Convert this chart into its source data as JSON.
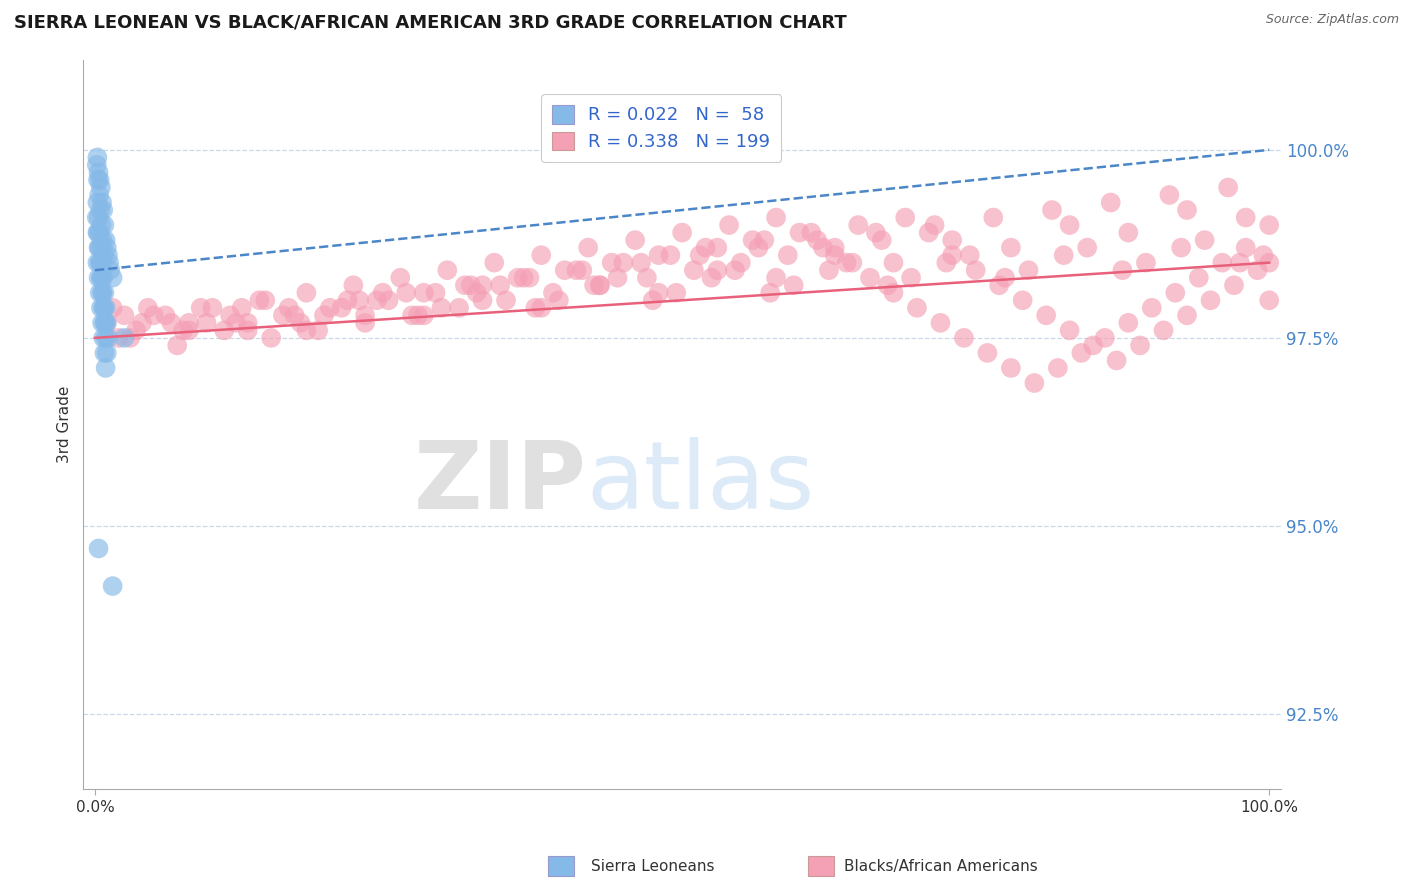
{
  "title": "SIERRA LEONEAN VS BLACK/AFRICAN AMERICAN 3RD GRADE CORRELATION CHART",
  "source": "Source: ZipAtlas.com",
  "ylabel": "3rd Grade",
  "xlim": [
    -1.0,
    101.0
  ],
  "ylim": [
    91.5,
    101.2
  ],
  "yticks": [
    92.5,
    95.0,
    97.5,
    100.0
  ],
  "ytick_labels": [
    "92.5%",
    "95.0%",
    "97.5%",
    "100.0%"
  ],
  "xtick_labels": [
    "0.0%",
    "100.0%"
  ],
  "blue_color": "#85b9e8",
  "pink_color": "#f4a0b5",
  "blue_line_color": "#4a86c8",
  "pink_line_color": "#e8607a",
  "legend_blue_label": "Sierra Leoneans",
  "legend_pink_label": "Blacks/African Americans",
  "background_color": "#ffffff",
  "grid_color": "#c8d8e8",
  "watermark_zip": "ZIP",
  "watermark_atlas": "atlas",
  "blue_scatter_x": [
    0.2,
    0.3,
    0.4,
    0.5,
    0.6,
    0.7,
    0.8,
    0.9,
    1.0,
    1.1,
    1.2,
    1.3,
    0.15,
    0.25,
    0.35,
    0.45,
    0.55,
    0.65,
    0.75,
    0.2,
    0.3,
    0.4,
    0.5,
    0.6,
    0.7,
    0.8,
    0.9,
    1.0,
    1.1,
    0.2,
    0.3,
    0.4,
    0.5,
    0.6,
    0.7,
    0.8,
    0.9,
    1.0,
    0.2,
    0.3,
    0.4,
    0.5,
    0.6,
    0.7,
    0.8,
    0.9,
    0.15,
    0.25,
    0.35,
    0.45,
    0.55,
    0.65,
    0.75,
    0.85,
    1.5,
    2.5,
    0.3,
    1.5
  ],
  "blue_scatter_y": [
    99.9,
    99.7,
    99.6,
    99.5,
    99.3,
    99.2,
    99.0,
    98.8,
    98.7,
    98.6,
    98.5,
    98.4,
    99.8,
    99.6,
    99.4,
    99.2,
    99.0,
    98.8,
    98.6,
    99.3,
    99.1,
    98.9,
    98.7,
    98.5,
    98.3,
    98.1,
    97.9,
    97.7,
    97.5,
    98.9,
    98.7,
    98.5,
    98.3,
    98.1,
    97.9,
    97.7,
    97.5,
    97.3,
    98.5,
    98.3,
    98.1,
    97.9,
    97.7,
    97.5,
    97.3,
    97.1,
    99.1,
    98.9,
    98.7,
    98.5,
    98.3,
    98.1,
    97.9,
    97.7,
    98.3,
    97.5,
    94.7,
    94.2
  ],
  "pink_scatter_x": [
    1.0,
    2.0,
    3.5,
    5.0,
    7.0,
    9.0,
    11.0,
    13.0,
    15.0,
    17.0,
    19.0,
    21.0,
    23.0,
    25.0,
    27.0,
    29.0,
    31.0,
    33.0,
    35.0,
    37.0,
    39.0,
    41.0,
    43.0,
    45.0,
    47.0,
    49.0,
    51.0,
    53.0,
    55.0,
    57.0,
    59.0,
    61.0,
    63.0,
    65.0,
    67.0,
    69.0,
    71.0,
    73.0,
    75.0,
    77.0,
    79.0,
    81.0,
    83.0,
    85.0,
    87.0,
    89.0,
    91.0,
    93.0,
    95.0,
    97.0,
    99.0,
    1.5,
    4.0,
    6.0,
    8.0,
    10.0,
    12.0,
    14.0,
    16.0,
    18.0,
    20.0,
    22.0,
    24.0,
    26.0,
    28.0,
    30.0,
    32.0,
    34.0,
    36.0,
    38.0,
    40.0,
    42.0,
    44.0,
    46.0,
    48.0,
    50.0,
    52.0,
    54.0,
    56.0,
    58.0,
    60.0,
    62.0,
    64.0,
    66.0,
    68.0,
    70.0,
    72.0,
    74.0,
    76.0,
    78.0,
    80.0,
    82.0,
    84.0,
    86.0,
    88.0,
    90.0,
    92.0,
    94.0,
    96.0,
    98.0,
    2.5,
    7.5,
    12.5,
    17.5,
    22.5,
    27.5,
    32.5,
    37.5,
    42.5,
    47.5,
    52.5,
    57.5,
    62.5,
    67.5,
    72.5,
    77.5,
    82.5,
    87.5,
    92.5,
    97.5,
    4.5,
    9.5,
    14.5,
    19.5,
    24.5,
    29.5,
    34.5,
    39.5,
    44.5,
    49.5,
    54.5,
    59.5,
    64.5,
    69.5,
    74.5,
    79.5,
    84.5,
    89.5,
    94.5,
    99.5,
    3.0,
    8.0,
    18.0,
    28.0,
    38.0,
    48.0,
    58.0,
    68.0,
    78.0,
    88.0,
    98.0,
    13.0,
    23.0,
    33.0,
    43.0,
    53.0,
    63.0,
    73.0,
    83.0,
    93.0,
    6.5,
    16.5,
    26.5,
    36.5,
    46.5,
    56.5,
    66.5,
    76.5,
    86.5,
    96.5,
    11.5,
    21.5,
    31.5,
    41.5,
    51.5,
    61.5,
    71.5,
    81.5,
    91.5,
    100.0,
    100.0,
    100.0
  ],
  "pink_scatter_y": [
    97.7,
    97.5,
    97.6,
    97.8,
    97.4,
    97.9,
    97.6,
    97.7,
    97.5,
    97.8,
    97.6,
    97.9,
    97.7,
    98.0,
    97.8,
    98.1,
    97.9,
    98.2,
    98.0,
    98.3,
    98.1,
    98.4,
    98.2,
    98.5,
    98.3,
    98.6,
    98.4,
    98.7,
    98.5,
    98.8,
    98.6,
    98.9,
    98.7,
    99.0,
    98.8,
    99.1,
    98.9,
    98.6,
    98.4,
    98.2,
    98.0,
    97.8,
    97.6,
    97.4,
    97.2,
    97.4,
    97.6,
    97.8,
    98.0,
    98.2,
    98.4,
    97.9,
    97.7,
    97.8,
    97.6,
    97.9,
    97.7,
    98.0,
    97.8,
    98.1,
    97.9,
    98.2,
    98.0,
    98.3,
    98.1,
    98.4,
    98.2,
    98.5,
    98.3,
    98.6,
    98.4,
    98.7,
    98.5,
    98.8,
    98.6,
    98.9,
    98.7,
    99.0,
    98.8,
    99.1,
    98.9,
    98.7,
    98.5,
    98.3,
    98.1,
    97.9,
    97.7,
    97.5,
    97.3,
    97.1,
    96.9,
    97.1,
    97.3,
    97.5,
    97.7,
    97.9,
    98.1,
    98.3,
    98.5,
    98.7,
    97.8,
    97.6,
    97.9,
    97.7,
    98.0,
    97.8,
    98.1,
    97.9,
    98.2,
    98.0,
    98.3,
    98.1,
    98.4,
    98.2,
    98.5,
    98.3,
    98.6,
    98.4,
    98.7,
    98.5,
    97.9,
    97.7,
    98.0,
    97.8,
    98.1,
    97.9,
    98.2,
    98.0,
    98.3,
    98.1,
    98.4,
    98.2,
    98.5,
    98.3,
    98.6,
    98.4,
    98.7,
    98.5,
    98.8,
    98.6,
    97.5,
    97.7,
    97.6,
    97.8,
    97.9,
    98.1,
    98.3,
    98.5,
    98.7,
    98.9,
    99.1,
    97.6,
    97.8,
    98.0,
    98.2,
    98.4,
    98.6,
    98.8,
    99.0,
    99.2,
    97.7,
    97.9,
    98.1,
    98.3,
    98.5,
    98.7,
    98.9,
    99.1,
    99.3,
    99.5,
    97.8,
    98.0,
    98.2,
    98.4,
    98.6,
    98.8,
    99.0,
    99.2,
    99.4,
    98.0,
    98.5,
    99.0
  ],
  "blue_trend_x": [
    0.0,
    100.0
  ],
  "blue_trend_y": [
    98.4,
    100.0
  ],
  "pink_trend_x": [
    0.0,
    100.0
  ],
  "pink_trend_y": [
    97.5,
    98.5
  ]
}
